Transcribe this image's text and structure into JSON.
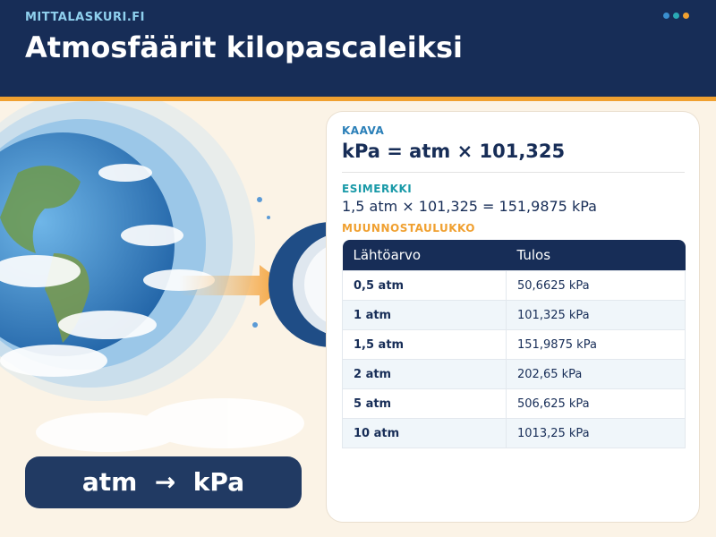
{
  "header": {
    "site": "MITTALASKURI.FI",
    "title": "Atmosfäärit kilopascaleiksi"
  },
  "formula": {
    "label": "KAAVA",
    "text": "kPa = atm × 101,325"
  },
  "example": {
    "label": "ESIMERKKI",
    "text": "1,5 atm × 101,325 = 151,9875 kPa"
  },
  "table": {
    "label": "MUUNNOSTAULUKKO",
    "headers": [
      "Lähtöarvo",
      "Tulos"
    ],
    "rows": [
      [
        "0,5 atm",
        "50,6625 kPa"
      ],
      [
        "1 atm",
        "101,325 kPa"
      ],
      [
        "1,5 atm",
        "151,9875 kPa"
      ],
      [
        "2 atm",
        "202,65 kPa"
      ],
      [
        "5 atm",
        "506,625 kPa"
      ],
      [
        "10 atm",
        "1013,25 kPa"
      ]
    ]
  },
  "badge": {
    "text": "atm  →  kPa"
  }
}
